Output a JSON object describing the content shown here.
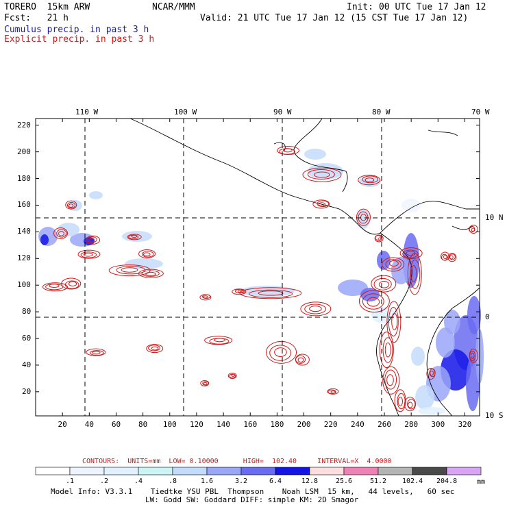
{
  "header": {
    "model": "TORERO  15km ARW",
    "org": "NCAR/MMM",
    "init": "Init: 00 UTC Tue 17 Jan 12",
    "fcst": "Fcst:   21 h",
    "valid": "Valid: 21 UTC Tue 17 Jan 12 (15 CST Tue 17 Jan 12)",
    "field1": "Cumulus precip. in past 3 h",
    "field2": "Explicit precip. in past 3 h",
    "field1_color": "#1a1aa6",
    "field2_color": "#d01818"
  },
  "axes": {
    "lon_labels": [
      "110 W",
      "100 W",
      "90 W",
      "80 W",
      "70 W"
    ],
    "lat_labels": [
      "10 N",
      "0",
      "10 S"
    ],
    "x_ticks": [
      "20",
      "40",
      "60",
      "80",
      "100",
      "120",
      "140",
      "160",
      "180",
      "200",
      "220",
      "240",
      "260",
      "280",
      "300",
      "320"
    ],
    "y_ticks": [
      "20",
      "40",
      "60",
      "80",
      "100",
      "120",
      "140",
      "160",
      "180",
      "200",
      "220"
    ]
  },
  "contour_info": {
    "text": "CONTOURS:  UNITS=mm  LOW= 0.10000      HIGH=  102.40     INTERVAL=X  4.0000",
    "color": "#d01818"
  },
  "colorbar": {
    "unit": "mm",
    "labels": [
      ".1",
      ".2",
      ".4",
      ".8",
      "1.6",
      "3.2",
      "6.4",
      "12.8",
      "25.6",
      "51.2",
      "102.4",
      "204.8"
    ],
    "colors": [
      "#ffffff",
      "#eef4ff",
      "#e0f0ff",
      "#ccf4f4",
      "#c4dcfc",
      "#9aa6f8",
      "#6a6cf2",
      "#1414e8",
      "#fcdede",
      "#ee82b4",
      "#b4b4b4",
      "#4a4a4a",
      "#d8a4f4"
    ]
  },
  "footer": {
    "line1": "Model Info: V3.3.1    Tiedtke YSU PBL  Thompson    Noah LSM  15 km,   44 levels,   60 sec",
    "line2": "LW: Godd SW: Goddard DIFF: simple KM: 2D Smagor"
  }
}
